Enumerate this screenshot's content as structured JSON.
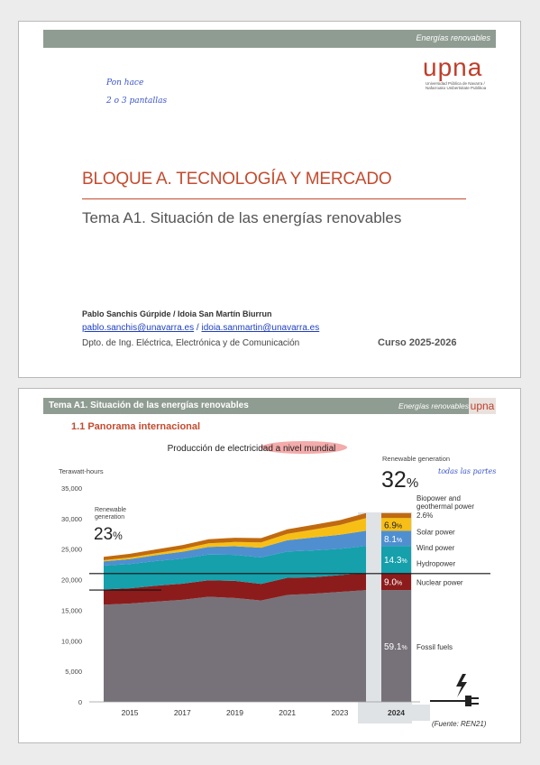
{
  "slide1": {
    "header_right": "Energías renovables",
    "logo_text": "upna",
    "logo_subtitle": "Universidad Pública de Navarra / Nafarroako Unibertsitate Publikoa",
    "handwritten_note": [
      "Pon hace",
      "2 o 3 pantallas"
    ],
    "title": "BLOQUE A. TECNOLOGÍA Y MERCADO",
    "subtitle": "Tema A1. Situación de las energías renovables",
    "authors": "Pablo Sanchis Gúrpide / Idoia San Martín Biurrun",
    "email1": "pablo.sanchis@unavarra.es",
    "email_sep": " / ",
    "email2": "idoia.sanmartin@unavarra.es",
    "department": "Dpto. de Ing. Eléctrica, Electrónica y de Comunicación",
    "course": "Curso 2025-2026"
  },
  "slide2": {
    "header_title": "Tema A1. Situación de las energías renovables",
    "header_right": "Energías renovables",
    "logo_text": "upna",
    "section": "1.1 Panorama internacional",
    "source": "(Fuente: REN21)",
    "handwritten_note": "todas las partes"
  },
  "colors": {
    "fossil": "#77727a",
    "nuclear": "#8c1c1c",
    "hydro": "#15a0ab",
    "wind": "#4f8fd0",
    "solar": "#f7bf16",
    "bio": "#c06a10",
    "accent": "#c44b2f",
    "header": "#8f9c92"
  },
  "chart_data": {
    "type": "area",
    "title": "Producción de electricidad a nivel mundial",
    "ylabel": "Terawatt-hours",
    "ylim": [
      0,
      35000
    ],
    "yticks": [
      "0",
      "5,000",
      "10,000",
      "15,000",
      "20,000",
      "25,000",
      "30,000",
      "35,000"
    ],
    "yticks_values": [
      0,
      5000,
      10000,
      15000,
      20000,
      25000,
      30000,
      35000
    ],
    "x": [
      2014,
      2015,
      2016,
      2017,
      2018,
      2019,
      2020,
      2021,
      2022,
      2023,
      2024
    ],
    "xticks": [
      "2015",
      "2017",
      "2019",
      "2021",
      "2023",
      "2024"
    ],
    "xticks_values": [
      2015,
      2017,
      2019,
      2021,
      2023,
      2024
    ],
    "series": [
      {
        "name": "Fossil fuels",
        "values": [
          15900,
          16100,
          16400,
          16700,
          17200,
          17000,
          16600,
          17500,
          17700,
          18000,
          18300
        ]
      },
      {
        "name": "Nuclear power",
        "values": [
          2500,
          2500,
          2600,
          2650,
          2700,
          2800,
          2700,
          2800,
          2700,
          2750,
          2800
        ]
      },
      {
        "name": "Hydropower",
        "values": [
          3900,
          3950,
          4050,
          4100,
          4200,
          4250,
          4350,
          4300,
          4400,
          4300,
          4400
        ]
      },
      {
        "name": "Wind power",
        "values": [
          700,
          830,
          960,
          1130,
          1270,
          1420,
          1590,
          1850,
          2100,
          2300,
          2500
        ]
      },
      {
        "name": "Solar power",
        "values": [
          190,
          250,
          330,
          440,
          570,
          700,
          850,
          1050,
          1300,
          1600,
          2100
        ]
      },
      {
        "name": "Biopower and geothermal power",
        "values": [
          560,
          600,
          620,
          650,
          680,
          700,
          720,
          750,
          770,
          790,
          800
        ]
      }
    ],
    "shares_2024": [
      {
        "label": "59.1",
        "unit": "%",
        "name": "Fossil fuels"
      },
      {
        "label": "9.0",
        "unit": "%",
        "name": "Nuclear power"
      },
      {
        "label": "14.3",
        "unit": "%",
        "name": "Hydropower"
      },
      {
        "label": "8.1",
        "unit": "%",
        "name": "Wind power"
      },
      {
        "label": "6.9",
        "unit": "%",
        "name": "Solar power"
      },
      {
        "label": "2.6",
        "unit": "%",
        "name": "Biopower and geothermal power"
      }
    ],
    "renewable_2015": {
      "label": "Renewable generation",
      "value": "23",
      "unit": "%"
    },
    "renewable_2024": {
      "label": "Renewable generation",
      "value": "32",
      "unit": "%"
    },
    "nuclear_line_level": 21000,
    "fossil_line_level": 18300
  }
}
